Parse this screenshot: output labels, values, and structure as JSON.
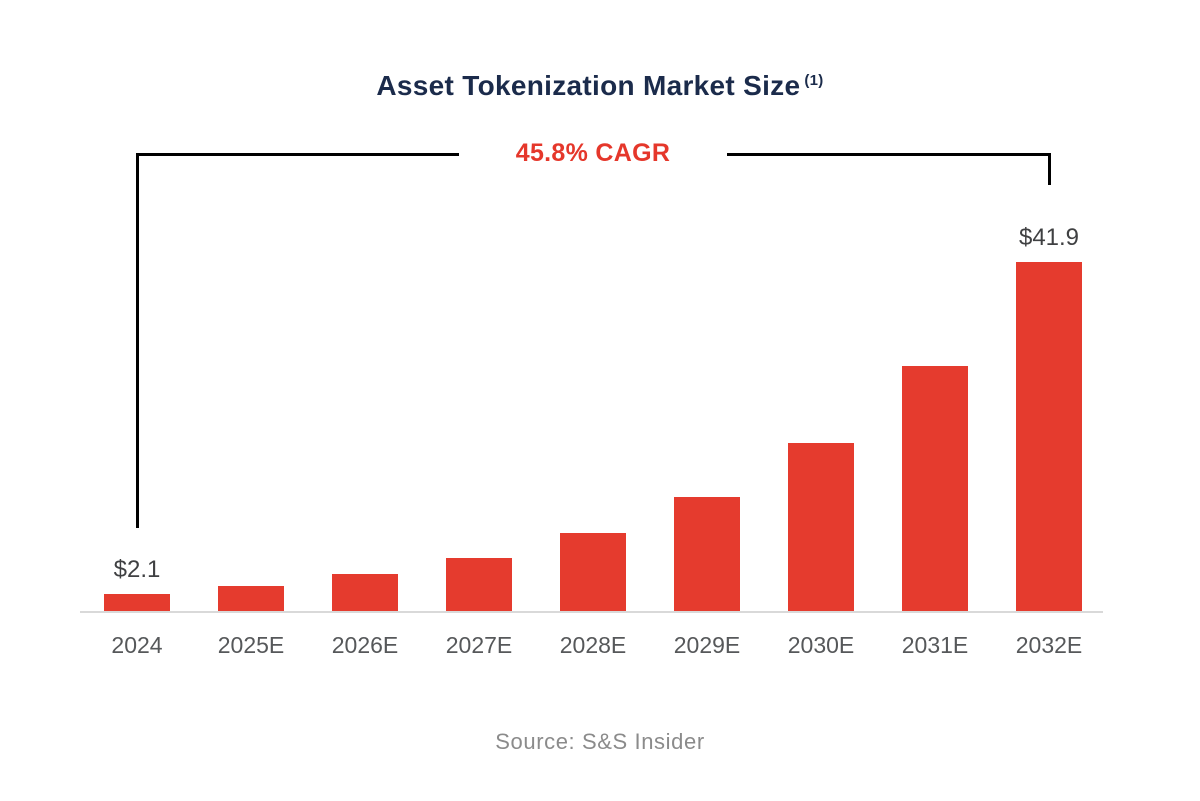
{
  "title": {
    "text": "Asset Tokenization Market Size",
    "superscript": "(1)"
  },
  "cagr_annotation": {
    "label": "45.8% CAGR"
  },
  "source": {
    "text": "Source: S&S Insider"
  },
  "colors": {
    "bar_red": "#e53b2e",
    "title_navy": "#1b2b4b",
    "cagr_red": "#e5372b",
    "axis_label_gray": "#56585a",
    "value_label_gray": "#3f4042",
    "source_gray": "#8b8b8b",
    "baseline_gray": "#d9d9d9",
    "bracket_black": "#000000"
  },
  "chart_data": {
    "type": "bar",
    "title": "Asset Tokenization Market Size (1)",
    "categories": [
      "2024",
      "2025E",
      "2026E",
      "2027E",
      "2028E",
      "2029E",
      "2030E",
      "2031E",
      "2032E"
    ],
    "values": [
      2.1,
      3.1,
      4.5,
      6.5,
      9.5,
      13.8,
      20.2,
      29.4,
      41.9
    ],
    "bar_value_labels": [
      "$2.1",
      "",
      "",
      "",
      "",
      "",
      "",
      "",
      "$41.9"
    ],
    "annotation": "45.8% CAGR",
    "source": "Source: S&S Insider",
    "xlabel": "",
    "ylabel": "",
    "ylim": [
      0,
      45
    ],
    "grid": false,
    "legend": null
  }
}
